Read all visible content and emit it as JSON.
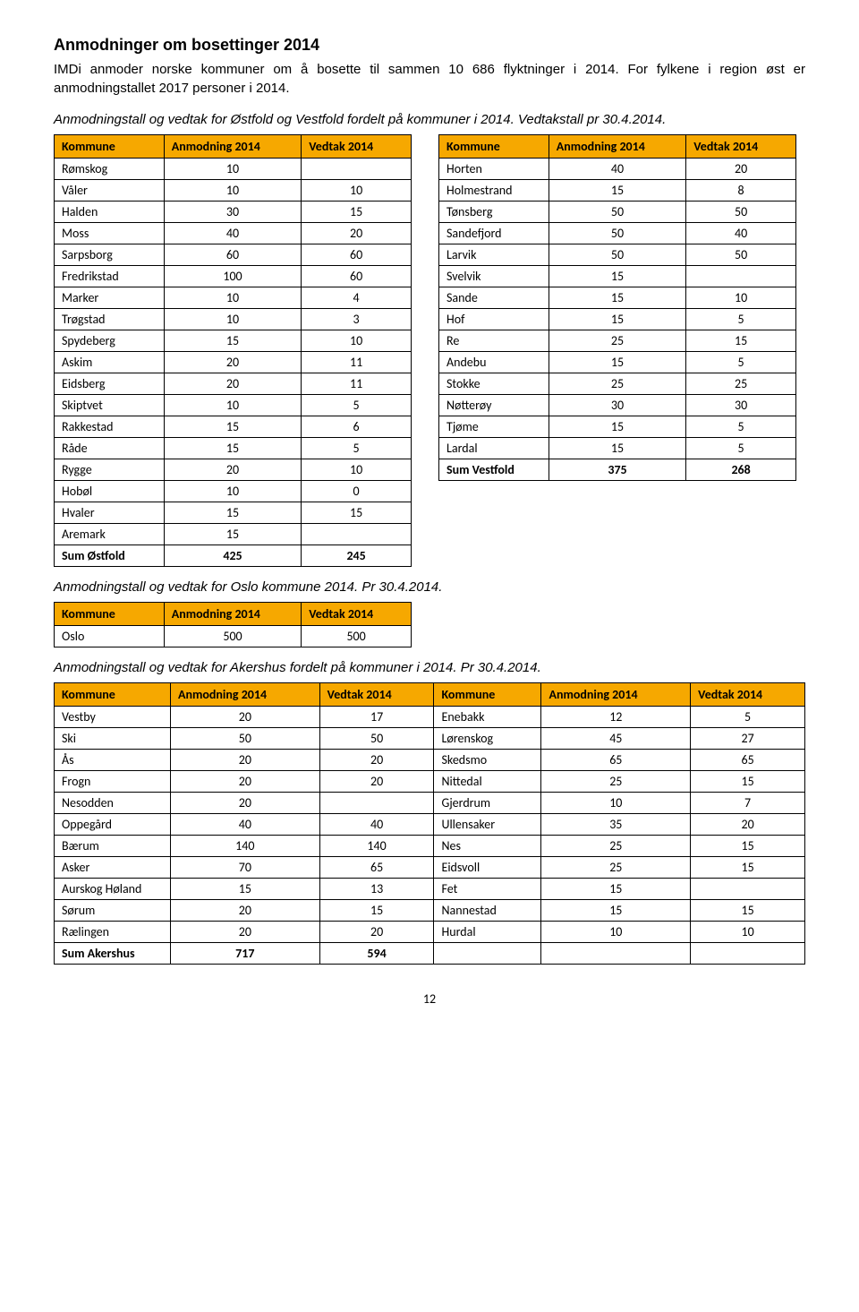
{
  "title": "Anmodninger om bosettinger 2014",
  "intro": "IMDi anmoder norske kommuner om å bosette til sammen 10 686 flyktninger i 2014. For fylkene i region øst er anmodningstallet 2017 personer i 2014.",
  "caption1": "Anmodningstall og vedtak for Østfold og Vestfold fordelt på kommuner i 2014. Vedtakstall pr 30.4.2014.",
  "headers": {
    "k": "Kommune",
    "a": "Anmodning 2014",
    "v": "Vedtak 2014"
  },
  "ostfold": [
    [
      "Rømskog",
      "10",
      ""
    ],
    [
      "Våler",
      "10",
      "10"
    ],
    [
      "Halden",
      "30",
      "15"
    ],
    [
      "Moss",
      "40",
      "20"
    ],
    [
      "Sarpsborg",
      "60",
      "60"
    ],
    [
      "Fredrikstad",
      "100",
      "60"
    ],
    [
      "Marker",
      "10",
      "4"
    ],
    [
      "Trøgstad",
      "10",
      "3"
    ],
    [
      "Spydeberg",
      "15",
      "10"
    ],
    [
      "Askim",
      "20",
      "11"
    ],
    [
      "Eidsberg",
      "20",
      "11"
    ],
    [
      "Skiptvet",
      "10",
      "5"
    ],
    [
      "Rakkestad",
      "15",
      "6"
    ],
    [
      "Råde",
      "15",
      "5"
    ],
    [
      "Rygge",
      "20",
      "10"
    ],
    [
      "Hobøl",
      "10",
      "0"
    ],
    [
      "Hvaler",
      "15",
      "15"
    ],
    [
      "Aremark",
      "15",
      ""
    ]
  ],
  "ostfoldSum": [
    "Sum Østfold",
    "425",
    "245"
  ],
  "vestfold": [
    [
      "Horten",
      "40",
      "20"
    ],
    [
      "Holmestrand",
      "15",
      "8"
    ],
    [
      "Tønsberg",
      "50",
      "50"
    ],
    [
      "Sandefjord",
      "50",
      "40"
    ],
    [
      "Larvik",
      "50",
      "50"
    ],
    [
      "Svelvik",
      "15",
      ""
    ],
    [
      "Sande",
      "15",
      "10"
    ],
    [
      "Hof",
      "15",
      "5"
    ],
    [
      "Re",
      "25",
      "15"
    ],
    [
      "Andebu",
      "15",
      "5"
    ],
    [
      "Stokke",
      "25",
      "25"
    ],
    [
      "Nøtterøy",
      "30",
      "30"
    ],
    [
      "Tjøme",
      "15",
      "5"
    ],
    [
      "Lardal",
      "15",
      "5"
    ]
  ],
  "vestfoldSum": [
    "Sum Vestfold",
    "375",
    "268"
  ],
  "caption2": "Anmodningstall og vedtak for Oslo kommune 2014. Pr 30.4.2014.",
  "oslo": [
    [
      "Oslo",
      "500",
      "500"
    ]
  ],
  "caption3": "Anmodningstall og vedtak for Akershus fordelt på kommuner i 2014. Pr 30.4.2014.",
  "akershus": [
    [
      "Vestby",
      "20",
      "17",
      "Enebakk",
      "12",
      "5"
    ],
    [
      "Ski",
      "50",
      "50",
      "Lørenskog",
      "45",
      "27"
    ],
    [
      "Ås",
      "20",
      "20",
      "Skedsmo",
      "65",
      "65"
    ],
    [
      "Frogn",
      "20",
      "20",
      "Nittedal",
      "25",
      "15"
    ],
    [
      "Nesodden",
      "20",
      "",
      "Gjerdrum",
      "10",
      "7"
    ],
    [
      "Oppegård",
      "40",
      "40",
      "Ullensaker",
      "35",
      "20"
    ],
    [
      "Bærum",
      "140",
      "140",
      "Nes",
      "25",
      "15"
    ],
    [
      "Asker",
      "70",
      "65",
      "Eidsvoll",
      "25",
      "15"
    ],
    [
      "Aurskog Høland",
      "15",
      "13",
      "Fet",
      "15",
      ""
    ],
    [
      "Sørum",
      "20",
      "15",
      "Nannestad",
      "15",
      "15"
    ],
    [
      "Rælingen",
      "20",
      "20",
      "Hurdal",
      "10",
      "10"
    ]
  ],
  "akershusSum": [
    "Sum Akershus",
    "717",
    "594",
    "",
    "",
    ""
  ],
  "pagenum": "12"
}
